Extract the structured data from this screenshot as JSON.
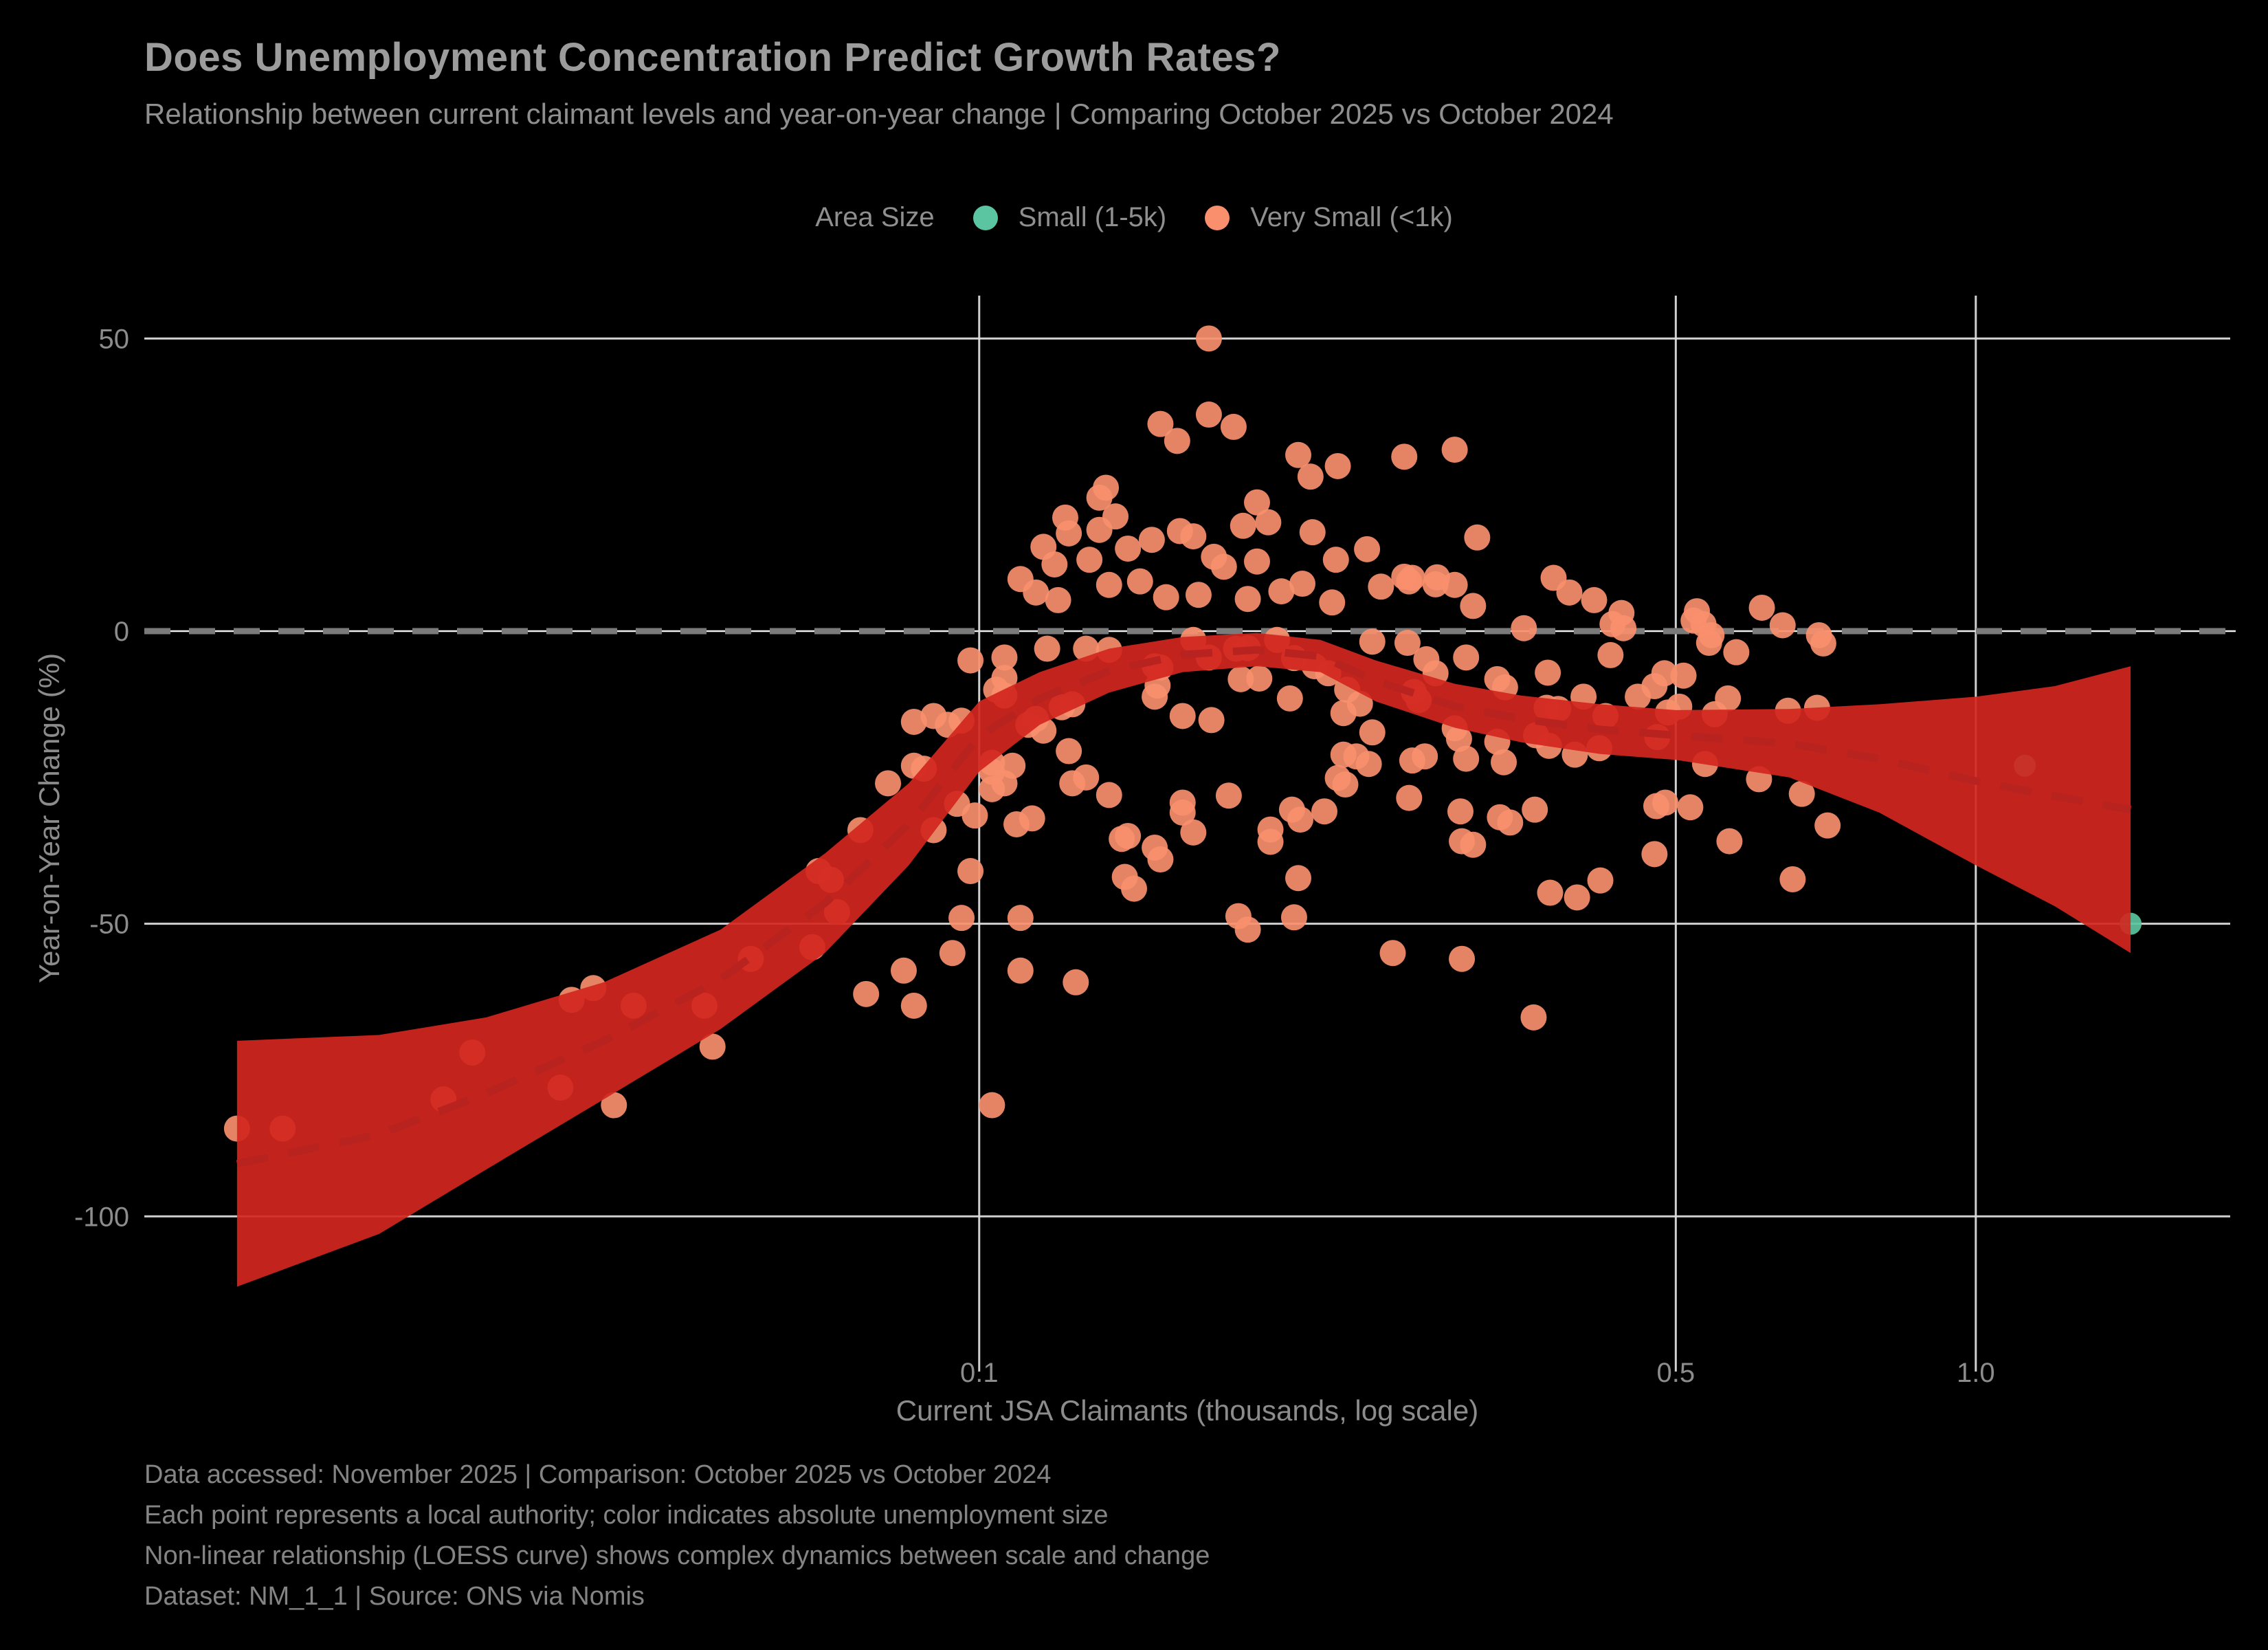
{
  "header": {
    "title": "Does Unemployment Concentration Predict Growth Rates?",
    "subtitle": "Relationship between current claimant levels and year-on-year change | Comparing October 2025 vs October 2024"
  },
  "legend": {
    "title": "Area Size",
    "items": [
      {
        "label": "Small (1-5k)",
        "color": "#5BC4A0"
      },
      {
        "label": "Very Small (<1k)",
        "color": "#F98F6C"
      }
    ]
  },
  "footer": {
    "lines": [
      "Data accessed: November 2025 | Comparison: October 2025 vs October 2024",
      "Each point represents a local authority; color indicates absolute unemployment size",
      "Non-linear relationship (LOESS curve) shows complex dynamics between scale and change",
      "Dataset: NM_1_1 | Source: ONS via Nomis"
    ]
  },
  "chart_data": {
    "type": "scatter",
    "title": "Does Unemployment Concentration Predict Growth Rates?",
    "xlabel": "Current JSA Claimants (thousands, log scale)",
    "ylabel": "Year-on-Year Change (%)",
    "x_scale": "log",
    "xlim": [
      0.01453,
      1.8
    ],
    "ylim": [
      -122.4,
      58.5
    ],
    "x_ticks": [
      0.1,
      0.5,
      1.0
    ],
    "x_tick_labels": [
      "0.1",
      "0.5",
      "1.0"
    ],
    "y_ticks": [
      50,
      0,
      -50,
      -100
    ],
    "y_tick_labels": [
      "50",
      "0",
      "-50",
      "-100"
    ],
    "zero_line_y": 0,
    "grid": true,
    "legend_position": "top-center",
    "grid_color": "#DCDCDC",
    "zero_dash_color": "#7A7A7A",
    "series": [
      {
        "name": "Very Small (<1k)",
        "color": "#F98F6C",
        "marker_radius": 19,
        "points": [
          [
            0.018,
            -85
          ],
          [
            0.02,
            -85
          ],
          [
            0.029,
            -80
          ],
          [
            0.031,
            -72
          ],
          [
            0.038,
            -78
          ],
          [
            0.043,
            -81
          ],
          [
            0.039,
            -63
          ],
          [
            0.041,
            -61
          ],
          [
            0.045,
            -64
          ],
          [
            0.053,
            -64
          ],
          [
            0.054,
            -71
          ],
          [
            0.059,
            -56
          ],
          [
            0.068,
            -54
          ],
          [
            0.069,
            -41
          ],
          [
            0.071,
            -42.5
          ],
          [
            0.072,
            -48
          ],
          [
            0.077,
            -62
          ],
          [
            0.084,
            -58
          ],
          [
            0.086,
            -64
          ],
          [
            0.094,
            -55
          ],
          [
            0.096,
            -49
          ],
          [
            0.103,
            -81
          ],
          [
            0.11,
            -49
          ],
          [
            0.11,
            -58
          ],
          [
            0.125,
            -60
          ],
          [
            0.186,
            -51
          ],
          [
            0.26,
            -55
          ],
          [
            0.305,
            -56
          ],
          [
            0.36,
            -66
          ],
          [
            0.076,
            -34
          ],
          [
            0.081,
            -26
          ],
          [
            0.086,
            -23
          ],
          [
            0.088,
            -23.5
          ],
          [
            0.09,
            -34
          ],
          [
            0.095,
            -29.5
          ],
          [
            0.098,
            -41
          ],
          [
            0.099,
            -31.5
          ],
          [
            0.103,
            -22.5
          ],
          [
            0.103,
            -24
          ],
          [
            0.103,
            -27
          ],
          [
            0.104,
            -10
          ],
          [
            0.106,
            -11
          ],
          [
            0.106,
            -26
          ],
          [
            0.108,
            -23
          ],
          [
            0.109,
            -33
          ],
          [
            0.112,
            -16
          ],
          [
            0.113,
            -32
          ],
          [
            0.114,
            -15
          ],
          [
            0.116,
            -17
          ],
          [
            0.121,
            -13
          ],
          [
            0.124,
            -12.5
          ],
          [
            0.123,
            -20.5
          ],
          [
            0.124,
            -26
          ],
          [
            0.128,
            -25
          ],
          [
            0.135,
            -28
          ],
          [
            0.139,
            -35.5
          ],
          [
            0.141,
            -35
          ],
          [
            0.143,
            -44
          ],
          [
            0.14,
            -42
          ],
          [
            0.15,
            -37
          ],
          [
            0.152,
            -39
          ],
          [
            0.086,
            -15.5
          ],
          [
            0.09,
            -14.5
          ],
          [
            0.093,
            -16
          ],
          [
            0.096,
            -15.3
          ],
          [
            0.098,
            -5
          ],
          [
            0.106,
            -4.5
          ],
          [
            0.106,
            -8
          ],
          [
            0.117,
            -3
          ],
          [
            0.128,
            -3
          ],
          [
            0.135,
            -3.2
          ],
          [
            0.15,
            -6
          ],
          [
            0.152,
            -6.2
          ],
          [
            0.151,
            -9.3
          ],
          [
            0.15,
            -11.2
          ],
          [
            0.164,
            -1.5
          ],
          [
            0.17,
            -4.5
          ],
          [
            0.181,
            -3
          ],
          [
            0.186,
            -2.9
          ],
          [
            0.183,
            -8.2
          ],
          [
            0.191,
            -8.1
          ],
          [
            0.199,
            -1.5
          ],
          [
            0.207,
            -4.6
          ],
          [
            0.217,
            -6
          ],
          [
            0.224,
            -7.2
          ],
          [
            0.248,
            -1.8
          ],
          [
            0.232,
            -14
          ],
          [
            0.234,
            -10
          ],
          [
            0.241,
            -12.4
          ],
          [
            0.248,
            -17.3
          ],
          [
            0.205,
            -11.5
          ],
          [
            0.16,
            -14.5
          ],
          [
            0.171,
            -15.2
          ],
          [
            0.232,
            -21.1
          ],
          [
            0.239,
            -21.4
          ],
          [
            0.246,
            -22.7
          ],
          [
            0.229,
            -25.1
          ],
          [
            0.233,
            -26.2
          ],
          [
            0.269,
            -2
          ],
          [
            0.308,
            -4.5
          ],
          [
            0.16,
            -29.3
          ],
          [
            0.16,
            -31
          ],
          [
            0.164,
            -34.4
          ],
          [
            0.178,
            -28.1
          ],
          [
            0.196,
            -33.9
          ],
          [
            0.196,
            -36
          ],
          [
            0.206,
            -30.5
          ],
          [
            0.21,
            -32.2
          ],
          [
            0.222,
            -30.8
          ],
          [
            0.209,
            -42.2
          ],
          [
            0.207,
            -48.9
          ],
          [
            0.182,
            -48.7
          ],
          [
            0.17,
            50
          ],
          [
            0.17,
            37
          ],
          [
            0.152,
            35.4
          ],
          [
            0.18,
            34.9
          ],
          [
            0.158,
            32.5
          ],
          [
            0.209,
            30.1
          ],
          [
            0.229,
            28.2
          ],
          [
            0.267,
            29.8
          ],
          [
            0.215,
            26.4
          ],
          [
            0.3,
            31
          ],
          [
            0.134,
            24.5
          ],
          [
            0.132,
            22.8
          ],
          [
            0.19,
            22
          ],
          [
            0.122,
            19.4
          ],
          [
            0.137,
            19.6
          ],
          [
            0.195,
            18.6
          ],
          [
            0.123,
            16.7
          ],
          [
            0.132,
            17.3
          ],
          [
            0.149,
            15.6
          ],
          [
            0.159,
            17.1
          ],
          [
            0.164,
            16.2
          ],
          [
            0.184,
            18
          ],
          [
            0.216,
            16.9
          ],
          [
            0.316,
            16
          ],
          [
            0.116,
            14.4
          ],
          [
            0.119,
            11.4
          ],
          [
            0.129,
            12.2
          ],
          [
            0.141,
            14.1
          ],
          [
            0.172,
            12.7
          ],
          [
            0.176,
            11
          ],
          [
            0.19,
            11.9
          ],
          [
            0.228,
            12.2
          ],
          [
            0.245,
            14
          ],
          [
            0.267,
            9.3
          ],
          [
            0.288,
            9.2
          ],
          [
            0.11,
            8.9
          ],
          [
            0.114,
            6.6
          ],
          [
            0.12,
            5.3
          ],
          [
            0.135,
            7.9
          ],
          [
            0.145,
            8.5
          ],
          [
            0.154,
            5.8
          ],
          [
            0.166,
            6.2
          ],
          [
            0.186,
            5.5
          ],
          [
            0.201,
            6.8
          ],
          [
            0.211,
            8.1
          ],
          [
            0.226,
            4.9
          ],
          [
            0.253,
            7.6
          ],
          [
            0.27,
            8.5
          ],
          [
            0.272,
            9.1
          ],
          [
            0.287,
            8
          ],
          [
            0.3,
            7.9
          ],
          [
            0.313,
            4.3
          ],
          [
            0.377,
            9.1
          ],
          [
            0.391,
            6.6
          ],
          [
            0.414,
            5.3
          ],
          [
            0.441,
            3.1
          ],
          [
            0.432,
            1.2
          ],
          [
            0.443,
            0.5
          ],
          [
            0.352,
            0.5
          ],
          [
            0.525,
            3.4
          ],
          [
            0.521,
            1.8
          ],
          [
            0.533,
            1.2
          ],
          [
            0.61,
            4
          ],
          [
            0.64,
            1
          ],
          [
            0.543,
            -0.7
          ],
          [
            0.54,
            -2
          ],
          [
            0.696,
            -0.7
          ],
          [
            0.703,
            -2.1
          ],
          [
            0.575,
            -3.6
          ],
          [
            0.43,
            -4.1
          ],
          [
            0.372,
            -7.1
          ],
          [
            0.509,
            -7.6
          ],
          [
            0.281,
            -4.8
          ],
          [
            0.287,
            -7.2
          ],
          [
            0.273,
            -10.4
          ],
          [
            0.276,
            -11.8
          ],
          [
            0.331,
            -8.2
          ],
          [
            0.337,
            -9.6
          ],
          [
            0.371,
            -13.1
          ],
          [
            0.381,
            -13.3
          ],
          [
            0.404,
            -11.2
          ],
          [
            0.425,
            -14.5
          ],
          [
            0.458,
            -11.2
          ],
          [
            0.476,
            -9.4
          ],
          [
            0.487,
            -7.2
          ],
          [
            0.479,
            -18.1
          ],
          [
            0.491,
            -13.9
          ],
          [
            0.504,
            -12.9
          ],
          [
            0.547,
            -14.2
          ],
          [
            0.564,
            -11.5
          ],
          [
            0.648,
            -13.6
          ],
          [
            0.693,
            -13.1
          ],
          [
            0.3,
            -16.6
          ],
          [
            0.303,
            -18.4
          ],
          [
            0.28,
            -21.4
          ],
          [
            0.272,
            -22.1
          ],
          [
            0.308,
            -21.8
          ],
          [
            0.331,
            -18.9
          ],
          [
            0.336,
            -22.4
          ],
          [
            0.362,
            -17.8
          ],
          [
            0.373,
            -19.6
          ],
          [
            0.396,
            -21.1
          ],
          [
            0.419,
            -20
          ],
          [
            0.535,
            -22.7
          ],
          [
            0.606,
            -25.3
          ],
          [
            0.669,
            -27.8
          ],
          [
            0.27,
            -28.5
          ],
          [
            0.304,
            -30.8
          ],
          [
            0.305,
            -35.9
          ],
          [
            0.313,
            -36.5
          ],
          [
            0.333,
            -31.8
          ],
          [
            0.341,
            -32.7
          ],
          [
            0.361,
            -30.5
          ],
          [
            0.478,
            -29.9
          ],
          [
            0.488,
            -29.3
          ],
          [
            0.517,
            -30.1
          ],
          [
            0.476,
            -38.1
          ],
          [
            0.566,
            -35.9
          ],
          [
            0.655,
            -42.4
          ],
          [
            0.374,
            -44.7
          ],
          [
            0.398,
            -45.5
          ],
          [
            0.42,
            -42.6
          ],
          [
            0.71,
            -33.2
          ]
        ]
      },
      {
        "name": "Small (1-5k)",
        "color": "#5BC4A0",
        "marker_radius": 16,
        "points": [
          [
            1.12,
            -23
          ],
          [
            1.43,
            -50
          ]
        ]
      }
    ],
    "loess": {
      "band_color": "#D2261E",
      "band_opacity": 0.92,
      "line_color": "#B8231F",
      "top": [
        [
          0.018,
          -70
        ],
        [
          0.025,
          -69
        ],
        [
          0.032,
          -66
        ],
        [
          0.042,
          -60
        ],
        [
          0.055,
          -51
        ],
        [
          0.07,
          -38
        ],
        [
          0.085,
          -26
        ],
        [
          0.1,
          -12
        ],
        [
          0.115,
          -7
        ],
        [
          0.135,
          -3
        ],
        [
          0.16,
          -1
        ],
        [
          0.19,
          -0.3
        ],
        [
          0.22,
          -1.5
        ],
        [
          0.25,
          -5
        ],
        [
          0.3,
          -9
        ],
        [
          0.35,
          -11
        ],
        [
          0.42,
          -12.5
        ],
        [
          0.5,
          -13.5
        ],
        [
          0.65,
          -13.3
        ],
        [
          0.8,
          -12.5
        ],
        [
          1.0,
          -11.2
        ],
        [
          1.2,
          -9.4
        ],
        [
          1.43,
          -6
        ]
      ],
      "bottom": [
        [
          0.018,
          -112
        ],
        [
          0.025,
          -103
        ],
        [
          0.032,
          -92
        ],
        [
          0.042,
          -80
        ],
        [
          0.055,
          -68
        ],
        [
          0.07,
          -55
        ],
        [
          0.085,
          -40
        ],
        [
          0.1,
          -24
        ],
        [
          0.115,
          -16
        ],
        [
          0.135,
          -10.5
        ],
        [
          0.16,
          -7
        ],
        [
          0.19,
          -6
        ],
        [
          0.22,
          -7
        ],
        [
          0.25,
          -12
        ],
        [
          0.3,
          -16.5
        ],
        [
          0.35,
          -19
        ],
        [
          0.42,
          -21
        ],
        [
          0.5,
          -22
        ],
        [
          0.65,
          -25
        ],
        [
          0.8,
          -31
        ],
        [
          1.0,
          -40
        ],
        [
          1.2,
          -47
        ],
        [
          1.43,
          -55
        ]
      ],
      "mean": [
        [
          0.018,
          -91
        ],
        [
          0.025,
          -86
        ],
        [
          0.032,
          -79
        ],
        [
          0.042,
          -70
        ],
        [
          0.055,
          -59.5
        ],
        [
          0.07,
          -46.5
        ],
        [
          0.085,
          -33
        ],
        [
          0.1,
          -18
        ],
        [
          0.115,
          -11.5
        ],
        [
          0.135,
          -6.8
        ],
        [
          0.16,
          -4
        ],
        [
          0.19,
          -3.2
        ],
        [
          0.22,
          -4.3
        ],
        [
          0.25,
          -8.5
        ],
        [
          0.3,
          -12.8
        ],
        [
          0.35,
          -15
        ],
        [
          0.42,
          -16.8
        ],
        [
          0.5,
          -17.8
        ],
        [
          0.65,
          -19.2
        ],
        [
          0.8,
          -21.8
        ],
        [
          1.0,
          -25.6
        ],
        [
          1.2,
          -28.2
        ],
        [
          1.43,
          -30.5
        ]
      ]
    }
  }
}
